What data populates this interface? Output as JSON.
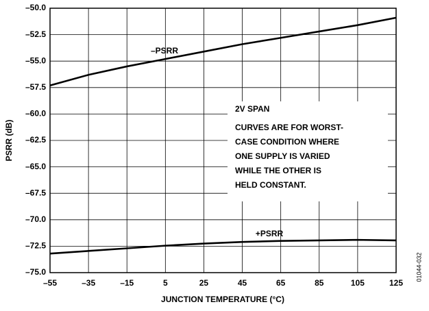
{
  "chart_data": {
    "type": "line",
    "x_label": "JUNCTION TEMPERATURE (°C)",
    "y_label": "PSRR (dB)",
    "x": [
      -55,
      -35,
      -15,
      5,
      25,
      45,
      65,
      85,
      105,
      125
    ],
    "series": [
      {
        "name": "–PSRR",
        "color": "#000000",
        "values": [
          -57.3,
          -56.3,
          -55.5,
          -54.8,
          -54.1,
          -53.4,
          -52.8,
          -52.2,
          -51.6,
          -50.9
        ]
      },
      {
        "name": "+PSRR",
        "color": "#000000",
        "values": [
          -73.2,
          -72.95,
          -72.7,
          -72.45,
          -72.25,
          -72.1,
          -72.0,
          -71.95,
          -71.9,
          -71.95
        ]
      }
    ],
    "annotations": [
      "2V SPAN",
      "CURVES ARE FOR WORST-",
      "CASE CONDITION WHERE",
      "ONE SUPPLY IS VARIED",
      "WHILE THE OTHER IS",
      "HELD CONSTANT."
    ],
    "figure_id": "01044-032",
    "xlim": [
      -55,
      125
    ],
    "xticks": [
      {
        "value": -55,
        "label": "–55"
      },
      {
        "value": -35,
        "label": "–35"
      },
      {
        "value": -15,
        "label": "–15"
      },
      5,
      25,
      45,
      65,
      85,
      105,
      125
    ],
    "ylim": [
      -75,
      -50
    ],
    "yticks": [
      {
        "value": -75,
        "label": "–75.0"
      },
      {
        "value": -72.5,
        "label": "–72.5"
      },
      {
        "value": -70,
        "label": "–70.0"
      },
      {
        "value": -67.5,
        "label": "–67.5"
      },
      {
        "value": -65,
        "label": "–65.0"
      },
      {
        "value": -62.5,
        "label": "–62.5"
      },
      {
        "value": -60,
        "label": "–60.0"
      },
      {
        "value": -57.5,
        "label": "–57.5"
      },
      {
        "value": -55,
        "label": "–55.0"
      },
      {
        "value": -52.5,
        "label": "–52.5"
      },
      {
        "value": -50,
        "label": "–50.0"
      }
    ],
    "grid": true
  }
}
